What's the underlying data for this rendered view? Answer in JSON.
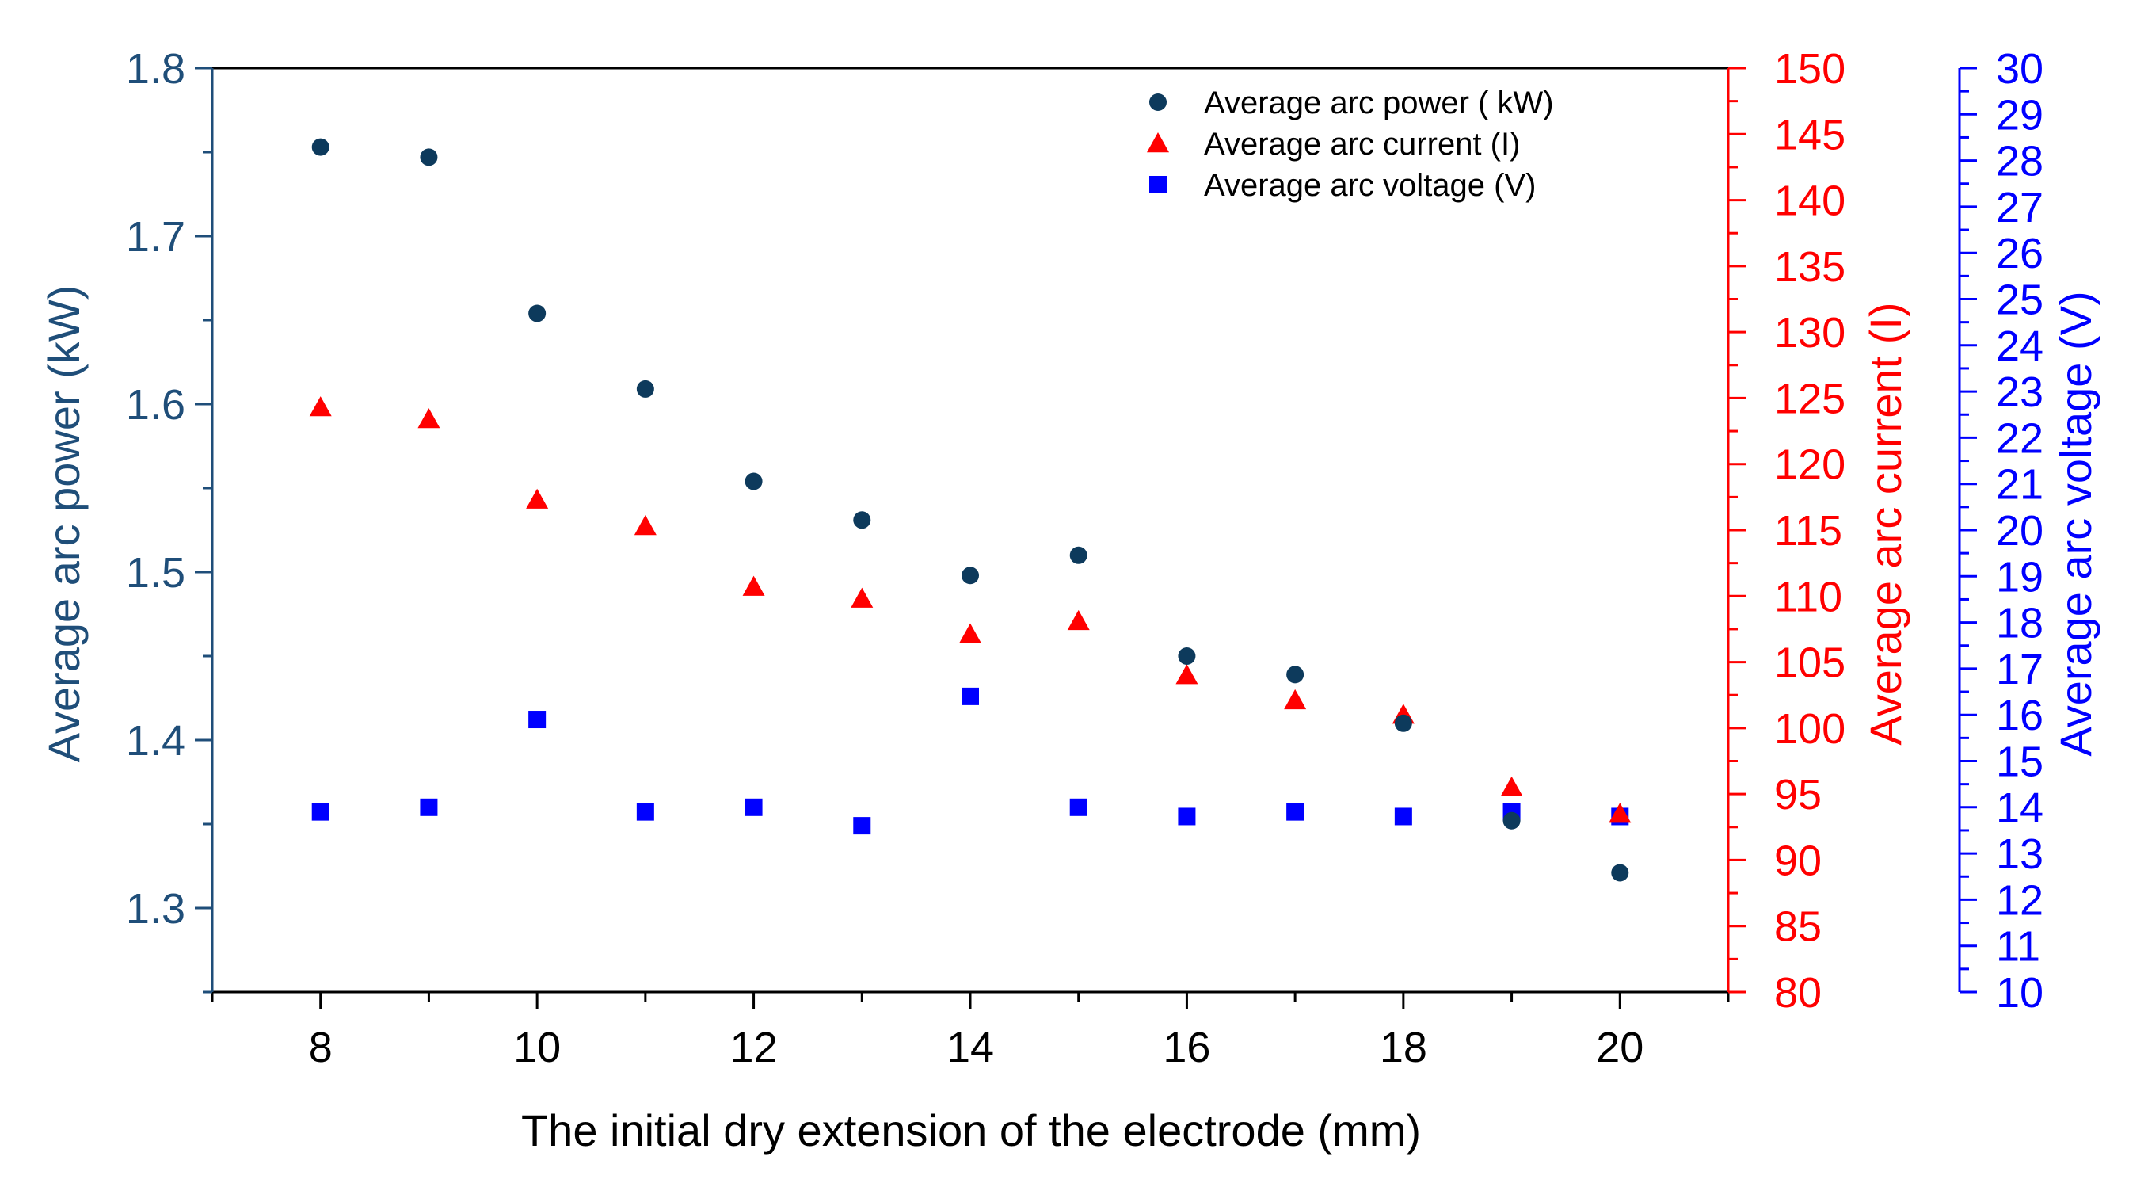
{
  "chart_data": {
    "type": "scatter",
    "x": [
      8,
      9,
      10,
      11,
      12,
      13,
      14,
      15,
      16,
      17,
      18,
      19,
      20
    ],
    "xlabel": "The initial dry extension of the electrode (mm)",
    "xlim": [
      7,
      21
    ],
    "xticks": [
      "8",
      "10",
      "12",
      "14",
      "16",
      "18",
      "20"
    ],
    "axes": {
      "power": {
        "label": "Average arc power (kW)",
        "ylim": [
          1.25,
          1.8
        ],
        "ticks": [
          "1.3",
          "1.4",
          "1.5",
          "1.6",
          "1.7",
          "1.8"
        ],
        "color": "#1f4e79"
      },
      "current": {
        "label": "Average arc current (I)",
        "ylim": [
          80,
          150
        ],
        "ticks": [
          "80",
          "85",
          "90",
          "95",
          "100",
          "105",
          "110",
          "115",
          "120",
          "125",
          "130",
          "135",
          "140",
          "145",
          "150"
        ],
        "color": "#ff0000"
      },
      "voltage": {
        "label": "Average arc voltage (V)",
        "ylim": [
          10,
          30
        ],
        "ticks": [
          "10",
          "11",
          "12",
          "13",
          "14",
          "15",
          "16",
          "17",
          "18",
          "19",
          "20",
          "21",
          "22",
          "23",
          "24",
          "25",
          "26",
          "27",
          "28",
          "29",
          "30"
        ],
        "color": "#0000ff"
      }
    },
    "series": [
      {
        "name": "Average arc power ( kW)",
        "axis": "power",
        "marker": "circle",
        "color": "#0d3a5c",
        "values": [
          1.753,
          1.747,
          1.654,
          1.609,
          1.554,
          1.531,
          1.498,
          1.51,
          1.45,
          1.439,
          1.41,
          1.352,
          1.321
        ]
      },
      {
        "name": "Average arc current (I)",
        "axis": "current",
        "marker": "triangle",
        "color": "#ff0000",
        "values": [
          124.3,
          123.4,
          117.3,
          115.3,
          110.7,
          109.8,
          107.1,
          108.1,
          104.0,
          102.1,
          101.0,
          95.5,
          93.5
        ]
      },
      {
        "name": "Average arc voltage (V)",
        "axis": "voltage",
        "marker": "square",
        "color": "#0000ff",
        "values": [
          13.9,
          14.0,
          15.9,
          13.9,
          14.0,
          13.6,
          16.4,
          14.0,
          13.8,
          13.9,
          13.8,
          13.9,
          13.8
        ]
      }
    ],
    "legend_position": "top-right"
  }
}
